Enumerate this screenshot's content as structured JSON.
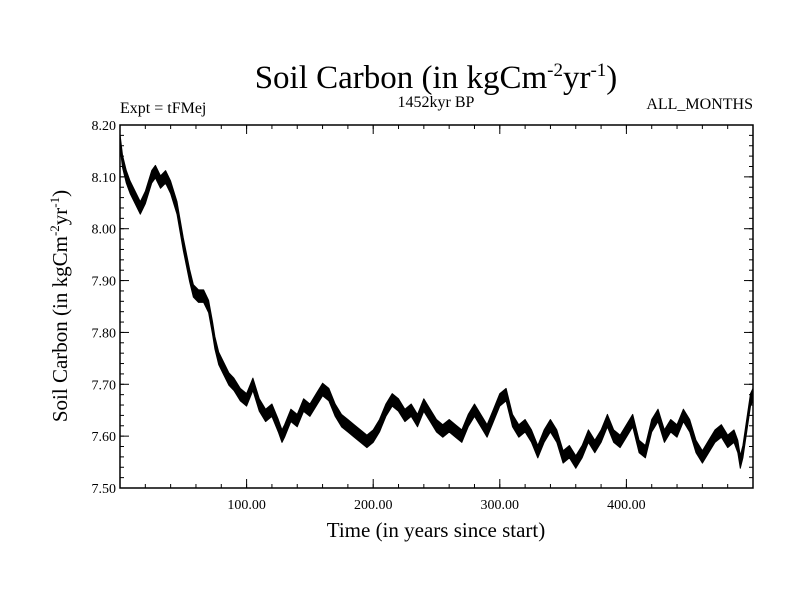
{
  "chart_data": {
    "type": "line",
    "title": {
      "main": "Soil Carbon (in kgCm",
      "exp1": "-2",
      "mid": "yr",
      "exp2": "-1",
      "close": ")"
    },
    "subtitle_left": "Expt = tFMej",
    "subtitle_center": "1452kyr BP",
    "subtitle_right": "ALL_MONTHS",
    "xlabel": "Time (in years since start)",
    "ylabel": {
      "main": "Soil Carbon (in kgCm",
      "exp1": "-2",
      "mid": "yr",
      "exp2": "-1",
      "close": ")"
    },
    "xlim": [
      0,
      500
    ],
    "ylim": [
      7.5,
      8.2
    ],
    "xticks": [
      {
        "value": 100,
        "label": "100.00"
      },
      {
        "value": 200,
        "label": "200.00"
      },
      {
        "value": 300,
        "label": "300.00"
      },
      {
        "value": 400,
        "label": "400.00"
      }
    ],
    "yticks": [
      {
        "value": 7.5,
        "label": "7.50"
      },
      {
        "value": 7.6,
        "label": "7.60"
      },
      {
        "value": 7.7,
        "label": "7.70"
      },
      {
        "value": 7.8,
        "label": "7.80"
      },
      {
        "value": 7.9,
        "label": "7.90"
      },
      {
        "value": 8.0,
        "label": "8.00"
      },
      {
        "value": 8.1,
        "label": "8.10"
      },
      {
        "value": 8.2,
        "label": "8.20"
      }
    ],
    "series": [
      {
        "name": "Soil Carbon",
        "color": "#000000",
        "band_halfwidth": 0.012,
        "x": [
          0,
          2,
          5,
          8,
          12,
          16,
          20,
          25,
          28,
          32,
          36,
          40,
          45,
          50,
          55,
          58,
          62,
          66,
          70,
          73,
          75,
          78,
          82,
          86,
          90,
          95,
          100,
          105,
          110,
          115,
          120,
          125,
          128,
          130,
          135,
          140,
          145,
          150,
          155,
          160,
          165,
          170,
          175,
          180,
          185,
          190,
          195,
          200,
          205,
          210,
          215,
          220,
          225,
          230,
          235,
          240,
          245,
          250,
          255,
          260,
          265,
          270,
          275,
          280,
          285,
          290,
          295,
          300,
          305,
          310,
          315,
          320,
          325,
          330,
          335,
          340,
          345,
          350,
          355,
          360,
          365,
          370,
          375,
          380,
          385,
          390,
          395,
          400,
          405,
          410,
          415,
          420,
          425,
          430,
          435,
          440,
          445,
          450,
          455,
          460,
          465,
          470,
          475,
          480,
          485,
          488,
          490,
          492,
          495,
          498,
          500
        ],
        "y": [
          8.17,
          8.13,
          8.1,
          8.08,
          8.06,
          8.04,
          8.06,
          8.1,
          8.11,
          8.09,
          8.1,
          8.08,
          8.04,
          7.97,
          7.91,
          7.88,
          7.87,
          7.87,
          7.85,
          7.81,
          7.78,
          7.75,
          7.73,
          7.71,
          7.7,
          7.68,
          7.67,
          7.7,
          7.66,
          7.64,
          7.65,
          7.62,
          7.6,
          7.61,
          7.64,
          7.63,
          7.66,
          7.65,
          7.67,
          7.69,
          7.68,
          7.65,
          7.63,
          7.62,
          7.61,
          7.6,
          7.59,
          7.6,
          7.62,
          7.65,
          7.67,
          7.66,
          7.64,
          7.65,
          7.63,
          7.66,
          7.64,
          7.62,
          7.61,
          7.62,
          7.61,
          7.6,
          7.63,
          7.65,
          7.63,
          7.61,
          7.64,
          7.67,
          7.68,
          7.63,
          7.61,
          7.62,
          7.6,
          7.57,
          7.6,
          7.62,
          7.6,
          7.56,
          7.57,
          7.55,
          7.57,
          7.6,
          7.58,
          7.6,
          7.63,
          7.6,
          7.59,
          7.61,
          7.63,
          7.58,
          7.57,
          7.62,
          7.64,
          7.6,
          7.62,
          7.61,
          7.64,
          7.62,
          7.58,
          7.56,
          7.58,
          7.6,
          7.61,
          7.59,
          7.6,
          7.58,
          7.55,
          7.57,
          7.62,
          7.67,
          7.68
        ]
      }
    ]
  }
}
